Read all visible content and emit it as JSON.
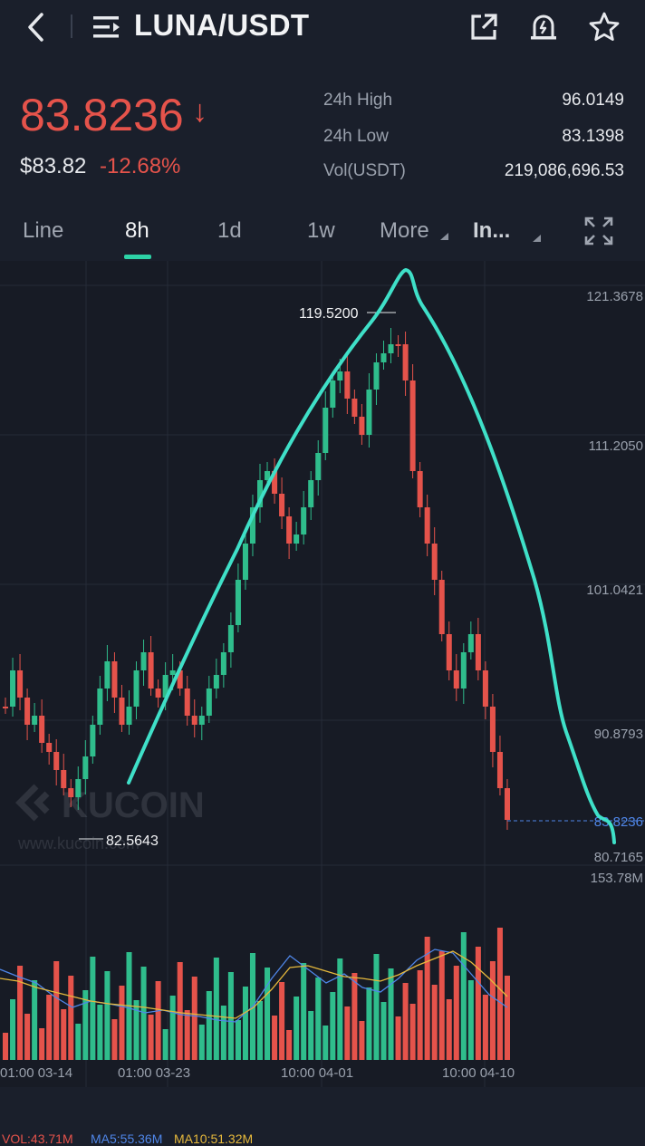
{
  "header": {
    "pair": "LUNA/USDT",
    "icons": [
      "back-arrow-icon",
      "menu-list-icon",
      "share-icon",
      "price-alert-icon",
      "star-icon"
    ]
  },
  "ticker": {
    "last_price": "83.8236",
    "usd_price": "$83.82",
    "change_percent": "-12.68%",
    "stats": [
      {
        "label": "24h High",
        "value": "96.0149"
      },
      {
        "label": "24h Low",
        "value": "83.1398"
      },
      {
        "label": "Vol(USDT)",
        "value": "219,086,696.53"
      }
    ]
  },
  "tabs": {
    "line": "Line",
    "h8": "8h",
    "d1": "1d",
    "w1": "1w",
    "more": "More",
    "indicators": "In..."
  },
  "chart": {
    "price_axis": [
      "121.3678",
      "111.2050",
      "101.0421",
      "90.8793",
      "83.8236",
      "80.7165"
    ],
    "high_marker": "119.5200",
    "low_marker": "82.5643",
    "volume_axis_max": "153.78M",
    "volume_legend": {
      "vol": "VOL:43.71M",
      "ma5": "MA5:55.36M",
      "ma10": "MA10:51.32M"
    },
    "time_axis": [
      "01:00 03-14",
      "01:00 03-23",
      "10:00 04-01",
      "10:00 04-10"
    ],
    "watermark": "KUCOIN",
    "watermark_url": "www.kucoin.com"
  },
  "colors": {
    "up": "#2fbd8c",
    "down": "#e5534b",
    "accent": "#2dd2a6",
    "ma5": "#4f86e8",
    "ma10": "#e6b93c",
    "drawing": "#3fe0c8"
  }
}
